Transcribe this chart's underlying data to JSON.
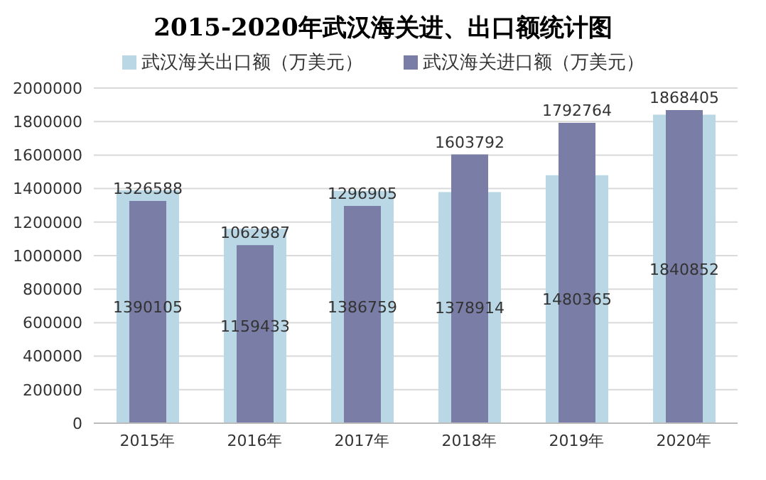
{
  "chart_data": {
    "type": "bar",
    "title": "2015-2020年武汉海关进、出口额统计图",
    "categories": [
      "2015年",
      "2016年",
      "2017年",
      "2018年",
      "2019年",
      "2020年"
    ],
    "series": [
      {
        "name": "武汉海关出口额（万美元）",
        "color": "#b9d7e4",
        "values": [
          1390105,
          1159433,
          1386759,
          1378914,
          1480365,
          1840852
        ]
      },
      {
        "name": "武汉海关进口额（万美元）",
        "color": "#7a7ea6",
        "values": [
          1326588,
          1062987,
          1296905,
          1603792,
          1792764,
          1868405
        ]
      }
    ],
    "ylim": [
      0,
      2000000
    ],
    "yticks": [
      0,
      200000,
      400000,
      600000,
      800000,
      1000000,
      1200000,
      1400000,
      1600000,
      1800000,
      2000000
    ],
    "grid": "y",
    "legend": "top",
    "data_labels": true
  }
}
